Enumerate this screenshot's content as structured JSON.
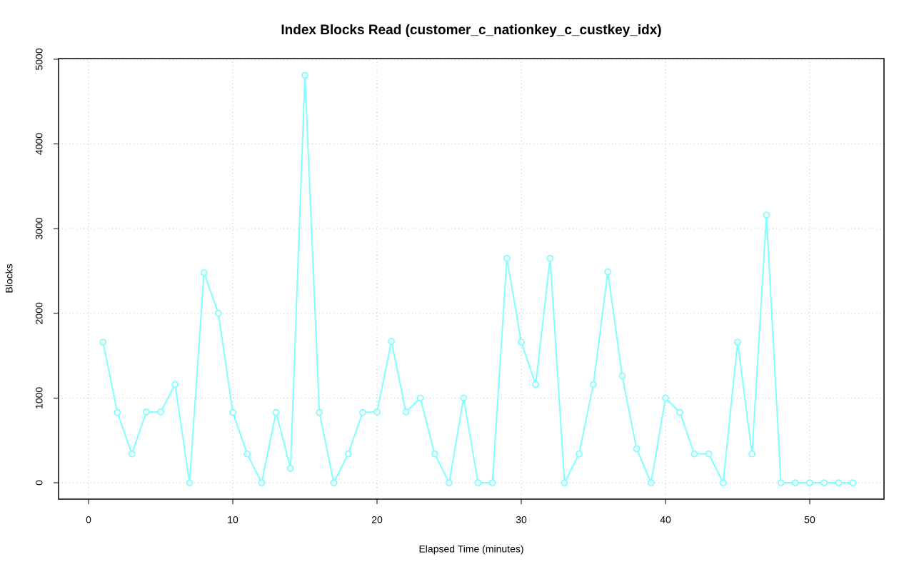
{
  "chart_data": {
    "type": "line",
    "title": "Index Blocks Read (customer_c_nationkey_c_custkey_idx)",
    "x_label": "Elapsed Time (minutes)",
    "y_label": "Blocks",
    "x": [
      1,
      2,
      3,
      4,
      5,
      6,
      7,
      8,
      9,
      10,
      11,
      12,
      13,
      14,
      15,
      16,
      17,
      18,
      19,
      20,
      21,
      22,
      23,
      24,
      25,
      26,
      27,
      28,
      29,
      30,
      31,
      32,
      33,
      34,
      35,
      36,
      37,
      38,
      39,
      40,
      41,
      42,
      43,
      44,
      45,
      46,
      47,
      48,
      49,
      50,
      51,
      52,
      53
    ],
    "values": [
      1660,
      830,
      340,
      835,
      835,
      1160,
      0,
      2480,
      2000,
      830,
      340,
      0,
      830,
      170,
      4810,
      830,
      0,
      340,
      830,
      835,
      1670,
      835,
      1000,
      340,
      0,
      1000,
      0,
      0,
      2650,
      1660,
      1160,
      2650,
      0,
      340,
      1160,
      2490,
      1260,
      400,
      0,
      1000,
      830,
      340,
      340,
      0,
      1660,
      340,
      3160,
      0,
      0,
      0,
      0,
      0,
      0
    ],
    "color": "#80ffff",
    "xlim": [
      -2.08,
      55.15
    ],
    "ylim": [
      -194,
      5008
    ],
    "xticks": [
      0,
      10,
      20,
      30,
      40,
      50
    ],
    "yticks": [
      0,
      1000,
      2000,
      3000,
      4000,
      5000
    ],
    "grid": true
  }
}
